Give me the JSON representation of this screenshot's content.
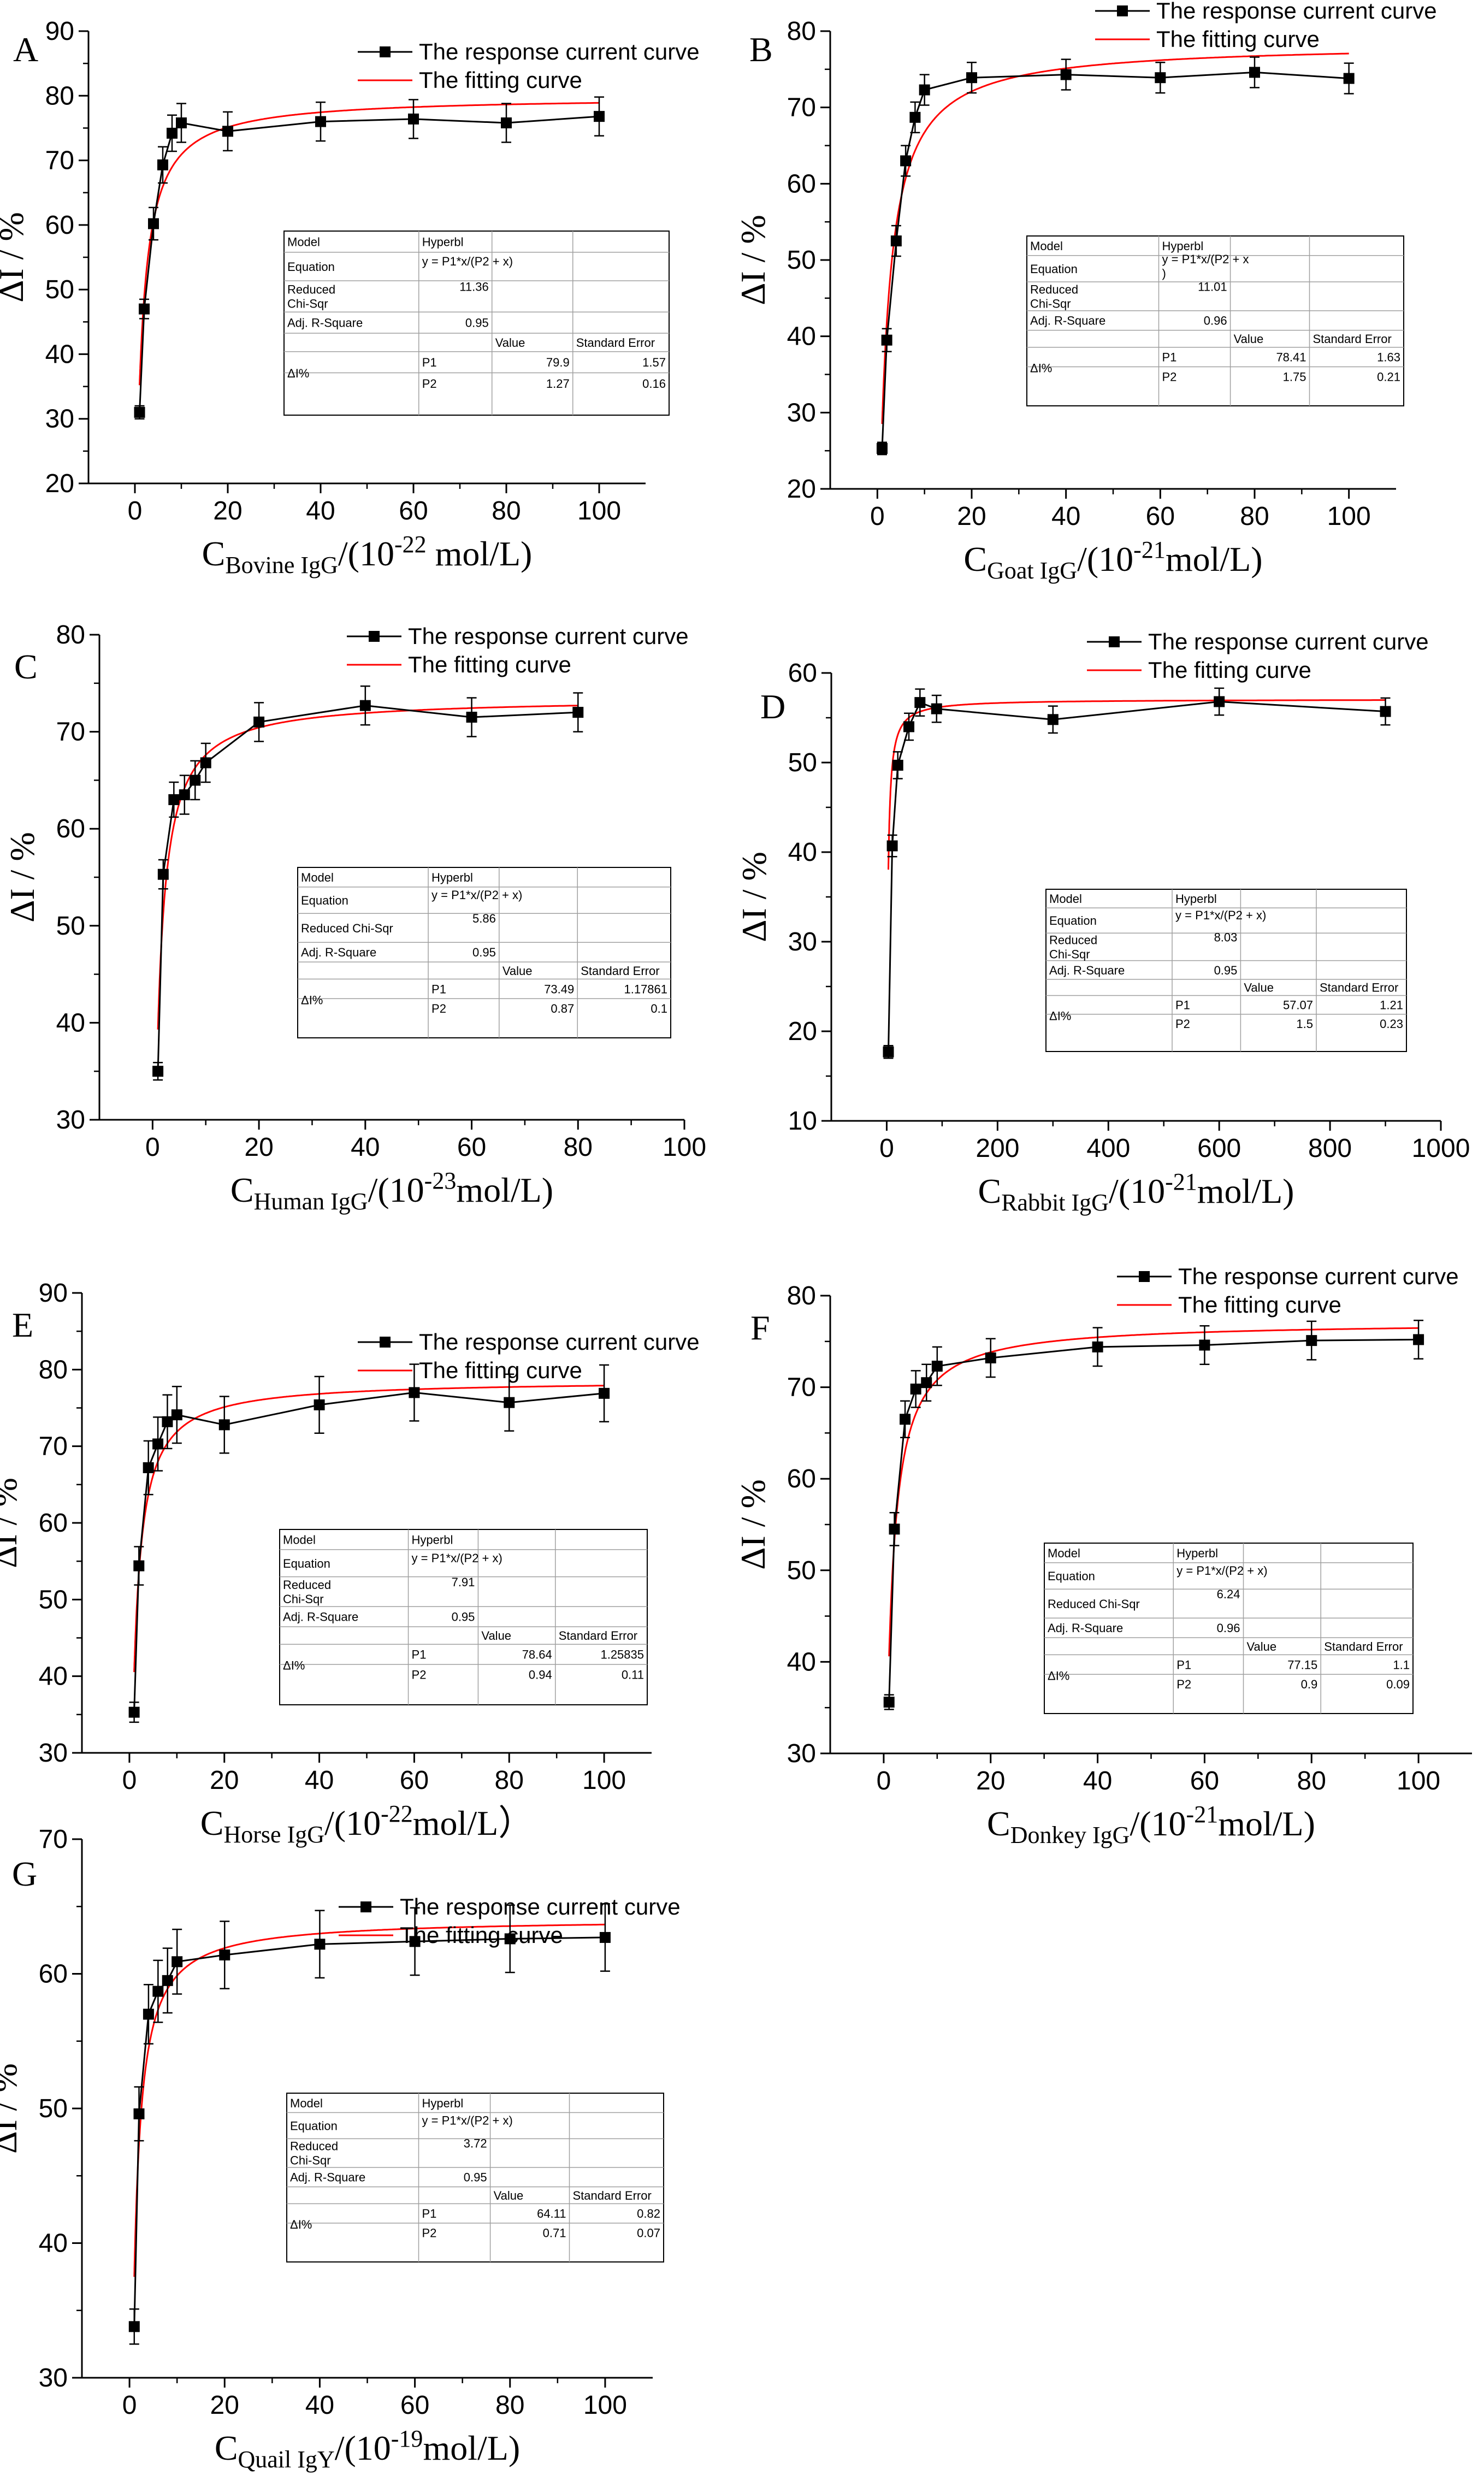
{
  "colors": {
    "data": "#000000",
    "fit": "#ff0000",
    "table_border": "#a0a0a0"
  },
  "legend": {
    "response": "The response current curve",
    "fitting": "The fitting curve"
  },
  "ylabel": "ΔI / %",
  "table_labels": {
    "model": "Model",
    "equation": "Equation",
    "chisqr": "Reduced Chi-Sqr",
    "chisqr_lines": [
      "Reduced",
      "Chi-Sqr"
    ],
    "adjr": "Adj. R-Square",
    "value": "Value",
    "stderr": "Standard Error",
    "dI": "ΔI%",
    "p1": "P1",
    "p2": "P2"
  },
  "chart_data": [
    {
      "letter": "A",
      "type": "line",
      "title": "",
      "xlabel": {
        "c": "C",
        "sub": "Bovine IgG",
        "pre": "/(10",
        "sup": "-22",
        "post": " mol/L)"
      },
      "xlim": [
        -10,
        110
      ],
      "ylim": [
        20,
        90
      ],
      "xticks": [
        0,
        20,
        40,
        60,
        80,
        100
      ],
      "yticks": [
        20,
        30,
        40,
        50,
        60,
        70,
        80,
        90
      ],
      "series": [
        {
          "name": "The response current curve",
          "x": [
            1,
            2,
            4,
            6,
            8,
            10,
            20,
            40,
            60,
            80,
            100
          ],
          "y": [
            31.0,
            47.0,
            60.2,
            69.3,
            74.2,
            75.8,
            74.5,
            76.0,
            76.4,
            75.8,
            76.8
          ],
          "err": [
            1.0,
            1.5,
            2.5,
            2.8,
            2.8,
            3.0,
            3.0,
            3.0,
            3.0,
            3.0,
            3.0
          ]
        },
        {
          "name": "The fitting curve",
          "type": "fit",
          "P1": 79.9,
          "P2": 1.27
        }
      ],
      "fit_table": {
        "model": "Hyperbl",
        "equation": [
          "y = P1*x/(P2 + x)"
        ],
        "chi_sqr": "11.36",
        "adj_r": "0.95",
        "p1_val": "79.9",
        "p1_err": "1.57",
        "p2_val": "1.27",
        "p2_err": "0.16",
        "chi_two": true
      }
    },
    {
      "letter": "B",
      "type": "line",
      "title": "",
      "xlabel": {
        "c": "C",
        "sub": "Goat IgG",
        "pre": "/(10",
        "sup": "-21",
        "post": "mol/L)"
      },
      "xlim": [
        -10,
        110
      ],
      "ylim": [
        20,
        80
      ],
      "xticks": [
        0,
        20,
        40,
        60,
        80,
        100
      ],
      "yticks": [
        20,
        30,
        40,
        50,
        60,
        70,
        80
      ],
      "series": [
        {
          "name": "The response current curve",
          "x": [
            1,
            2,
            4,
            6,
            8,
            10,
            20,
            40,
            60,
            80,
            100
          ],
          "y": [
            25.3,
            39.5,
            52.5,
            63.0,
            68.7,
            72.3,
            73.9,
            74.3,
            73.9,
            74.6,
            73.8
          ],
          "err": [
            0.8,
            1.5,
            2.0,
            2.0,
            2.0,
            2.0,
            2.0,
            2.0,
            2.0,
            2.0,
            2.0
          ]
        },
        {
          "name": "The fitting curve",
          "type": "fit",
          "P1": 78.41,
          "P2": 1.75
        }
      ],
      "fit_table": {
        "model": "Hyperbl",
        "equation": [
          "y = P1*x/(P2 + x",
          ")"
        ],
        "chi_sqr": "11.01",
        "adj_r": "0.96",
        "p1_val": "78.41",
        "p1_err": "1.63",
        "p2_val": "1.75",
        "p2_err": "0.21",
        "chi_two": true
      }
    },
    {
      "letter": "C",
      "type": "line",
      "title": "",
      "xlabel": {
        "c": "C",
        "sub": "Human IgG",
        "pre": "/(10",
        "sup": "-23",
        "post": "mol/L)"
      },
      "xlim": [
        -10,
        100
      ],
      "ylim": [
        30,
        80
      ],
      "xticks": [
        0,
        20,
        40,
        60,
        80,
        100
      ],
      "yticks": [
        30,
        40,
        50,
        60,
        70,
        80
      ],
      "series": [
        {
          "name": "The response current curve",
          "x": [
            1,
            2,
            4,
            6,
            8,
            10,
            20,
            40,
            60,
            80
          ],
          "y": [
            35.0,
            55.3,
            63.0,
            63.5,
            65.0,
            66.8,
            71.0,
            72.7,
            71.5,
            72.0
          ],
          "err": [
            0.9,
            1.5,
            1.8,
            2.0,
            2.0,
            2.0,
            2.0,
            2.0,
            2.0,
            2.0
          ]
        },
        {
          "name": "The fitting curve",
          "type": "fit",
          "P1": 73.49,
          "P2": 0.87
        }
      ],
      "fit_table": {
        "model": "Hyperbl",
        "equation": [
          "y = P1*x/(P2 + x)"
        ],
        "chi_sqr": "5.86",
        "adj_r": "0.95",
        "p1_val": "73.49",
        "p1_err": "1.17861",
        "p2_val": "0.87",
        "p2_err": "0.1",
        "chi_two": false
      }
    },
    {
      "letter": "D",
      "type": "line",
      "title": "",
      "xlabel": {
        "c": "C",
        "sub": "Rabbit IgG",
        "pre": "/(10",
        "sup": "-21",
        "post": "mol/L)"
      },
      "xlim": [
        -100,
        1000
      ],
      "ylim": [
        10,
        60
      ],
      "xticks": [
        0,
        200,
        400,
        600,
        800,
        1000
      ],
      "yticks": [
        10,
        20,
        30,
        40,
        50,
        60
      ],
      "series": [
        {
          "name": "The response current curve",
          "x": [
            3,
            10,
            20,
            40,
            60,
            90,
            300,
            600,
            900
          ],
          "y": [
            17.7,
            40.7,
            49.7,
            54.0,
            56.7,
            56.0,
            54.8,
            56.8,
            55.7
          ],
          "err": [
            0.7,
            1.2,
            1.5,
            1.5,
            1.5,
            1.5,
            1.5,
            1.5,
            1.5
          ]
        },
        {
          "name": "The fitting curve",
          "type": "fit",
          "P1": 57.07,
          "P2": 1.5
        }
      ],
      "fit_table": {
        "model": "Hyperbl",
        "equation": [
          "y = P1*x/(P2 + x)"
        ],
        "chi_sqr": "8.03",
        "adj_r": "0.95",
        "p1_val": "57.07",
        "p1_err": "1.21",
        "p2_val": "1.5",
        "p2_err": "0.23",
        "chi_two": true
      }
    },
    {
      "letter": "E",
      "type": "line",
      "title": "",
      "xlabel": {
        "c": "C",
        "sub": "Horse IgG",
        "pre": "/(10",
        "sup": "-22",
        "post": "mol/L）"
      },
      "xlim": [
        -10,
        110
      ],
      "ylim": [
        30,
        90
      ],
      "xticks": [
        0,
        20,
        40,
        60,
        80,
        100
      ],
      "yticks": [
        30,
        40,
        50,
        60,
        70,
        80,
        90
      ],
      "series": [
        {
          "name": "The response current curve",
          "x": [
            1,
            2,
            4,
            6,
            8,
            10,
            20,
            40,
            60,
            80,
            100
          ],
          "y": [
            35.3,
            54.4,
            67.2,
            70.3,
            73.2,
            74.1,
            72.8,
            75.4,
            77.0,
            75.7,
            76.9
          ],
          "err": [
            1.3,
            2.5,
            3.5,
            3.5,
            3.5,
            3.7,
            3.7,
            3.7,
            3.7,
            3.7,
            3.7
          ]
        },
        {
          "name": "The fitting curve",
          "type": "fit",
          "P1": 78.64,
          "P2": 0.94
        }
      ],
      "fit_table": {
        "model": "Hyperbl",
        "equation": [
          "y = P1*x/(P2 + x)"
        ],
        "chi_sqr": "7.91",
        "adj_r": "0.95",
        "p1_val": "78.64",
        "p1_err": "1.25835",
        "p2_val": "0.94",
        "p2_err": "0.11",
        "chi_two": true
      }
    },
    {
      "letter": "F",
      "type": "line",
      "title": "",
      "xlabel": {
        "c": "C",
        "sub": "Donkey IgG",
        "pre": "/(10",
        "sup": "-21",
        "post": "mol/L)"
      },
      "xlim": [
        -10,
        110
      ],
      "ylim": [
        30,
        80
      ],
      "xticks": [
        0,
        20,
        40,
        60,
        80,
        100
      ],
      "yticks": [
        30,
        40,
        50,
        60,
        70,
        80
      ],
      "series": [
        {
          "name": "The response current curve",
          "x": [
            1,
            2,
            4,
            6,
            8,
            10,
            20,
            40,
            60,
            80,
            100
          ],
          "y": [
            35.6,
            54.5,
            66.5,
            69.8,
            70.5,
            72.3,
            73.2,
            74.4,
            74.6,
            75.1,
            75.2
          ],
          "err": [
            0.8,
            1.8,
            2.0,
            2.0,
            2.0,
            2.1,
            2.1,
            2.1,
            2.1,
            2.1,
            2.1
          ]
        },
        {
          "name": "The fitting curve",
          "type": "fit",
          "P1": 77.15,
          "P2": 0.9
        }
      ],
      "fit_table": {
        "model": "Hyperbl",
        "equation": [
          "y = P1*x/(P2 + x)"
        ],
        "chi_sqr": "6.24",
        "adj_r": "0.96",
        "p1_val": "77.15",
        "p1_err": "1.1",
        "p2_val": "0.9",
        "p2_err": "0.09",
        "chi_two": false
      }
    },
    {
      "letter": "G",
      "type": "line",
      "title": "",
      "xlabel": {
        "c": "C",
        "sub": "Quail IgY",
        "pre": "/(10",
        "sup": "-19",
        "post": "mol/L)"
      },
      "xlim": [
        -10,
        110
      ],
      "ylim": [
        30,
        70
      ],
      "xticks": [
        0,
        20,
        40,
        60,
        80,
        100
      ],
      "yticks": [
        30,
        40,
        50,
        60,
        70
      ],
      "series": [
        {
          "name": "The response current curve",
          "x": [
            1,
            2,
            4,
            6,
            8,
            10,
            20,
            40,
            60,
            80,
            100
          ],
          "y": [
            33.8,
            49.6,
            57.0,
            58.7,
            59.5,
            60.9,
            61.4,
            62.2,
            62.4,
            62.6,
            62.7
          ],
          "err": [
            1.3,
            2.0,
            2.2,
            2.3,
            2.4,
            2.4,
            2.5,
            2.5,
            2.5,
            2.5,
            2.5
          ]
        },
        {
          "name": "The fitting curve",
          "type": "fit",
          "P1": 64.11,
          "P2": 0.71
        }
      ],
      "fit_table": {
        "model": "Hyperbl",
        "equation": [
          "y = P1*x/(P2 + x)"
        ],
        "chi_sqr": "3.72",
        "adj_r": "0.95",
        "p1_val": "64.11",
        "p1_err": "0.82",
        "p2_val": "0.71",
        "p2_err": "0.07",
        "chi_two": true
      }
    }
  ]
}
